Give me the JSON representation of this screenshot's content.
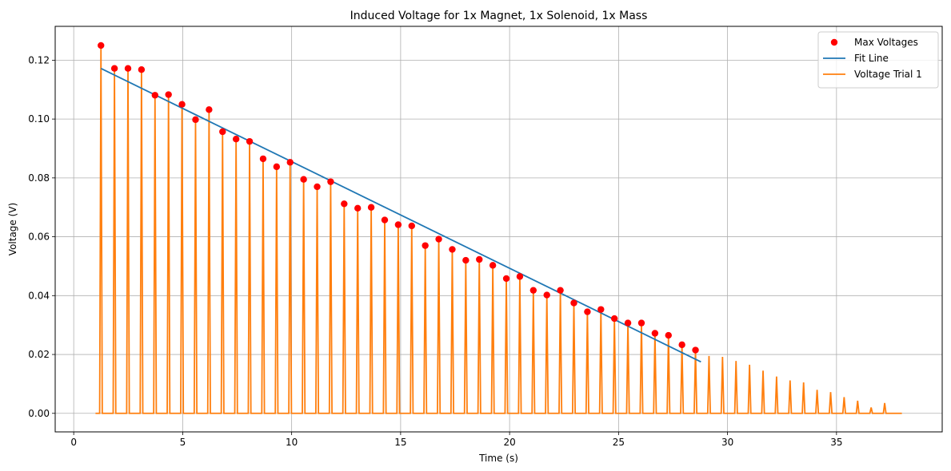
{
  "chart_data": {
    "type": "line",
    "title": "Induced Voltage for 1x Magnet, 1x Solenoid, 1x Mass",
    "xlabel": "Time (s)",
    "ylabel": "Voltage (V)",
    "xlim": [
      -0.85,
      39.85
    ],
    "ylim": [
      -0.0063,
      0.1315
    ],
    "xticks": [
      0,
      5,
      10,
      15,
      20,
      25,
      30,
      35
    ],
    "yticks": [
      0.0,
      0.02,
      0.04,
      0.06,
      0.08,
      0.1,
      0.12
    ],
    "xtick_labels": [
      "0",
      "5",
      "10",
      "15",
      "20",
      "25",
      "30",
      "35"
    ],
    "ytick_labels": [
      "0.00",
      "0.02",
      "0.04",
      "0.06",
      "0.08",
      "0.10",
      "0.12"
    ],
    "grid": true,
    "legend_position": "top-right",
    "legend": [
      "Max Voltages",
      "Fit Line",
      "Voltage Trial 1"
    ],
    "series": [
      {
        "name": "Max Voltages",
        "kind": "scatter",
        "color": "#ff0000",
        "x": [
          1.25,
          1.87,
          2.49,
          3.11,
          3.73,
          4.35,
          4.97,
          5.59,
          6.21,
          6.83,
          7.45,
          8.07,
          8.69,
          9.31,
          9.93,
          10.55,
          11.17,
          11.79,
          12.41,
          13.03,
          13.65,
          14.27,
          14.89,
          15.51,
          16.13,
          16.75,
          17.37,
          17.99,
          18.61,
          19.23,
          19.85,
          20.47,
          21.09,
          21.71,
          22.33,
          22.95,
          23.57,
          24.19,
          24.81,
          25.43,
          26.05,
          26.67,
          27.29,
          27.91,
          28.53
        ],
        "y": [
          0.125,
          0.1172,
          0.1172,
          0.1168,
          0.1081,
          0.1083,
          0.105,
          0.0998,
          0.1032,
          0.0957,
          0.0932,
          0.0924,
          0.0865,
          0.0838,
          0.0853,
          0.0795,
          0.077,
          0.0787,
          0.0712,
          0.0697,
          0.07,
          0.0657,
          0.0641,
          0.0637,
          0.057,
          0.0592,
          0.0557,
          0.052,
          0.0523,
          0.0503,
          0.0458,
          0.0465,
          0.0418,
          0.0402,
          0.0418,
          0.0375,
          0.0345,
          0.0353,
          0.0322,
          0.0307,
          0.0307,
          0.0272,
          0.0265,
          0.0233,
          0.0215
        ]
      },
      {
        "name": "Fit Line",
        "kind": "line",
        "color": "#1f77b4",
        "x": [
          1.25,
          28.78
        ],
        "y": [
          0.1172,
          0.0175
        ]
      },
      {
        "name": "Voltage Trial 1",
        "kind": "pulses",
        "color": "#ff7f0e",
        "x_start": 1.0,
        "x_end": 38.0,
        "baseline": 0.0,
        "peaks_x": [
          1.25,
          1.87,
          2.49,
          3.11,
          3.73,
          4.35,
          4.97,
          5.59,
          6.21,
          6.83,
          7.45,
          8.07,
          8.69,
          9.31,
          9.93,
          10.55,
          11.17,
          11.79,
          12.41,
          13.03,
          13.65,
          14.27,
          14.89,
          15.51,
          16.13,
          16.75,
          17.37,
          17.99,
          18.61,
          19.23,
          19.85,
          20.47,
          21.09,
          21.71,
          22.33,
          22.95,
          23.57,
          24.19,
          24.81,
          25.43,
          26.05,
          26.67,
          27.29,
          27.91,
          28.53,
          29.15,
          29.77,
          30.39,
          31.01,
          31.63,
          32.25,
          32.87,
          33.49,
          34.11,
          34.73,
          35.35,
          35.97,
          36.59,
          37.21
        ],
        "peaks_y": [
          0.125,
          0.1172,
          0.1172,
          0.1168,
          0.1081,
          0.1083,
          0.105,
          0.0998,
          0.1032,
          0.0957,
          0.0932,
          0.0924,
          0.0865,
          0.0838,
          0.0853,
          0.0795,
          0.077,
          0.0787,
          0.0712,
          0.0697,
          0.07,
          0.0657,
          0.0641,
          0.0637,
          0.057,
          0.0592,
          0.0557,
          0.052,
          0.0523,
          0.0503,
          0.0458,
          0.0465,
          0.0418,
          0.0402,
          0.0418,
          0.0375,
          0.0345,
          0.0353,
          0.0322,
          0.0307,
          0.0307,
          0.0272,
          0.0265,
          0.0233,
          0.0215,
          0.0195,
          0.0192,
          0.0178,
          0.0165,
          0.0145,
          0.0125,
          0.0112,
          0.0105,
          0.008,
          0.0072,
          0.0055,
          0.0043,
          0.002,
          0.0035
        ]
      }
    ]
  }
}
